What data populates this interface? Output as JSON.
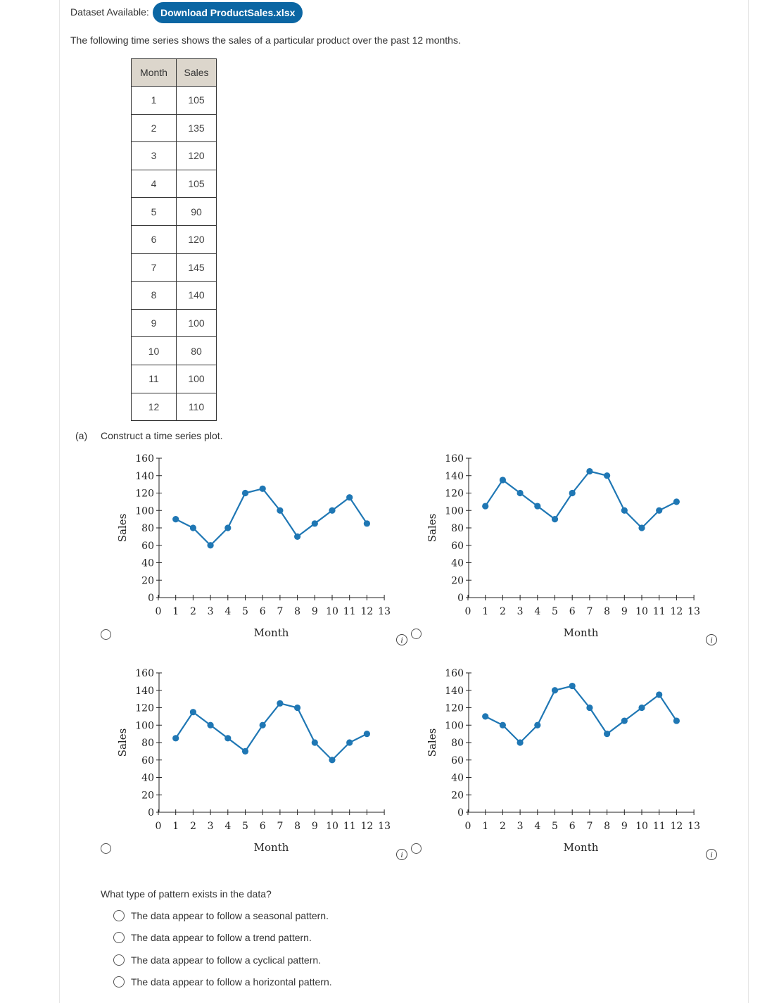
{
  "header": {
    "dataset_label": "Dataset Available:",
    "download_label": "Download ProductSales.xlsx"
  },
  "intro": "The following time series shows the sales of a particular product over the past 12 months.",
  "table": {
    "headers": [
      "Month",
      "Sales"
    ],
    "rows": [
      [
        "1",
        "105"
      ],
      [
        "2",
        "135"
      ],
      [
        "3",
        "120"
      ],
      [
        "4",
        "105"
      ],
      [
        "5",
        "90"
      ],
      [
        "6",
        "120"
      ],
      [
        "7",
        "145"
      ],
      [
        "8",
        "140"
      ],
      [
        "9",
        "100"
      ],
      [
        "10",
        "80"
      ],
      [
        "11",
        "100"
      ],
      [
        "12",
        "110"
      ]
    ]
  },
  "part_a": {
    "label": "(a)",
    "prompt": "Construct a time series plot."
  },
  "info_glyph": "i",
  "chart_data": [
    {
      "type": "line",
      "xlabel": "Month",
      "ylabel": "Sales",
      "xlim": [
        0,
        13
      ],
      "ylim": [
        0,
        160
      ],
      "xticks": [
        "0",
        "1",
        "2",
        "3",
        "4",
        "5",
        "6",
        "7",
        "8",
        "9",
        "10",
        "11",
        "12",
        "13"
      ],
      "yticks": [
        "0",
        "20",
        "40",
        "60",
        "80",
        "100",
        "120",
        "140",
        "160"
      ],
      "x": [
        1,
        2,
        3,
        4,
        5,
        6,
        7,
        8,
        9,
        10,
        11,
        12
      ],
      "series": [
        {
          "values": [
            90,
            80,
            60,
            80,
            120,
            125,
            100,
            70,
            85,
            100,
            115,
            85
          ]
        }
      ],
      "color": "#1f77b4"
    },
    {
      "type": "line",
      "xlabel": "Month",
      "ylabel": "Sales",
      "xlim": [
        0,
        13
      ],
      "ylim": [
        0,
        160
      ],
      "xticks": [
        "0",
        "1",
        "2",
        "3",
        "4",
        "5",
        "6",
        "7",
        "8",
        "9",
        "10",
        "11",
        "12",
        "13"
      ],
      "yticks": [
        "0",
        "20",
        "40",
        "60",
        "80",
        "100",
        "120",
        "140",
        "160"
      ],
      "x": [
        1,
        2,
        3,
        4,
        5,
        6,
        7,
        8,
        9,
        10,
        11,
        12
      ],
      "series": [
        {
          "values": [
            105,
            135,
            120,
            105,
            90,
            120,
            145,
            140,
            100,
            80,
            100,
            110
          ]
        }
      ],
      "color": "#1f77b4"
    },
    {
      "type": "line",
      "xlabel": "Month",
      "ylabel": "Sales",
      "xlim": [
        0,
        13
      ],
      "ylim": [
        0,
        160
      ],
      "xticks": [
        "0",
        "1",
        "2",
        "3",
        "4",
        "5",
        "6",
        "7",
        "8",
        "9",
        "10",
        "11",
        "12",
        "13"
      ],
      "yticks": [
        "0",
        "20",
        "40",
        "60",
        "80",
        "100",
        "120",
        "140",
        "160"
      ],
      "x": [
        1,
        2,
        3,
        4,
        5,
        6,
        7,
        8,
        9,
        10,
        11,
        12
      ],
      "series": [
        {
          "values": [
            85,
            115,
            100,
            85,
            70,
            100,
            125,
            120,
            80,
            60,
            80,
            90
          ]
        }
      ],
      "color": "#1f77b4"
    },
    {
      "type": "line",
      "xlabel": "Month",
      "ylabel": "Sales",
      "xlim": [
        0,
        13
      ],
      "ylim": [
        0,
        160
      ],
      "xticks": [
        "0",
        "1",
        "2",
        "3",
        "4",
        "5",
        "6",
        "7",
        "8",
        "9",
        "10",
        "11",
        "12",
        "13"
      ],
      "yticks": [
        "0",
        "20",
        "40",
        "60",
        "80",
        "100",
        "120",
        "140",
        "160"
      ],
      "x": [
        1,
        2,
        3,
        4,
        5,
        6,
        7,
        8,
        9,
        10,
        11,
        12
      ],
      "series": [
        {
          "values": [
            110,
            100,
            80,
            100,
            140,
            145,
            120,
            90,
            105,
            120,
            135,
            105
          ]
        }
      ],
      "color": "#1f77b4"
    }
  ],
  "question": {
    "prompt": "What type of pattern exists in the data?",
    "options": [
      "The data appear to follow a seasonal pattern.",
      "The data appear to follow a trend pattern.",
      "The data appear to follow a cyclical pattern.",
      "The data appear to follow a horizontal pattern."
    ]
  }
}
